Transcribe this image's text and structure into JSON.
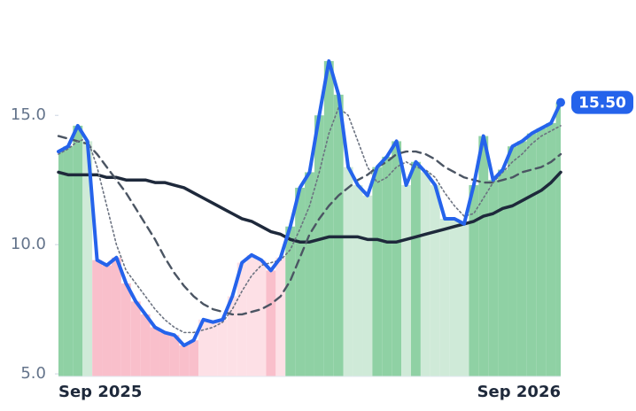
{
  "chart_data": {
    "type": "line",
    "categories": [
      "Sep 2025",
      null,
      null,
      null,
      null,
      null,
      null,
      null,
      null,
      null,
      null,
      null,
      null,
      null,
      null,
      null,
      null,
      null,
      null,
      null,
      null,
      null,
      null,
      null,
      null,
      null,
      null,
      null,
      null,
      null,
      null,
      null,
      null,
      null,
      null,
      null,
      null,
      null,
      null,
      null,
      null,
      null,
      null,
      null,
      null,
      null,
      null,
      null,
      null,
      null,
      null,
      null,
      "Sep 2026"
    ],
    "series": [
      {
        "color": "#2563eb",
        "width": 4,
        "dash": "none",
        "values": [
          13.6,
          13.8,
          14.6,
          14.0,
          9.4,
          9.2,
          9.5,
          8.5,
          7.8,
          7.3,
          6.8,
          6.6,
          6.5,
          6.1,
          6.3,
          7.1,
          7.0,
          7.1,
          8.0,
          9.3,
          9.6,
          9.4,
          9.0,
          9.5,
          10.7,
          12.2,
          12.8,
          15.0,
          17.1,
          15.8,
          13.0,
          12.3,
          11.9,
          13.0,
          13.4,
          14.0,
          12.3,
          13.2,
          12.8,
          12.3,
          11.0,
          11.0,
          10.8,
          12.3,
          14.2,
          12.5,
          12.9,
          13.8,
          14.0,
          14.3,
          14.5,
          14.7,
          15.5
        ],
        "value_labels": [
          null,
          null,
          null,
          null,
          null,
          null,
          null,
          null,
          null,
          null,
          null,
          null,
          null,
          null,
          null,
          null,
          null,
          null,
          null,
          null,
          null,
          null,
          null,
          null,
          null,
          null,
          null,
          null,
          null,
          null,
          null,
          null,
          null,
          null,
          null,
          null,
          null,
          null,
          null,
          null,
          null,
          null,
          null,
          null,
          null,
          null,
          null,
          null,
          null,
          null,
          null,
          null,
          "15.50"
        ]
      },
      {
        "color": "#6b7280",
        "width": 1.6,
        "dash": "2 3",
        "values": [
          13.5,
          13.7,
          14.0,
          14.1,
          13.0,
          11.5,
          10.0,
          9.0,
          8.5,
          8.0,
          7.5,
          7.1,
          6.8,
          6.6,
          6.6,
          6.7,
          6.8,
          7.0,
          7.5,
          8.2,
          8.8,
          9.2,
          9.3,
          9.4,
          9.8,
          10.6,
          11.5,
          12.8,
          14.3,
          15.3,
          15.0,
          14.0,
          13.0,
          12.4,
          12.6,
          13.0,
          13.2,
          13.0,
          12.9,
          12.6,
          12.0,
          11.5,
          11.1,
          11.2,
          11.8,
          12.4,
          12.8,
          13.2,
          13.5,
          13.9,
          14.2,
          14.4,
          14.6
        ]
      },
      {
        "color": "#4b5563",
        "width": 2.4,
        "dash": "9 6",
        "values": [
          14.2,
          14.1,
          14.0,
          13.9,
          13.5,
          13.0,
          12.5,
          12.0,
          11.4,
          10.8,
          10.2,
          9.5,
          8.9,
          8.4,
          8.0,
          7.7,
          7.5,
          7.4,
          7.3,
          7.3,
          7.4,
          7.5,
          7.7,
          8.0,
          8.6,
          9.5,
          10.4,
          11.0,
          11.5,
          11.9,
          12.2,
          12.5,
          12.7,
          13.0,
          13.2,
          13.5,
          13.6,
          13.6,
          13.5,
          13.3,
          13.0,
          12.8,
          12.6,
          12.5,
          12.4,
          12.4,
          12.5,
          12.6,
          12.8,
          12.9,
          13.0,
          13.2,
          13.5
        ]
      },
      {
        "color": "#1e293b",
        "width": 3.5,
        "dash": "none",
        "values": [
          12.8,
          12.7,
          12.7,
          12.7,
          12.7,
          12.6,
          12.6,
          12.5,
          12.5,
          12.5,
          12.4,
          12.4,
          12.3,
          12.2,
          12.0,
          11.8,
          11.6,
          11.4,
          11.2,
          11.0,
          10.9,
          10.7,
          10.5,
          10.4,
          10.2,
          10.1,
          10.1,
          10.2,
          10.3,
          10.3,
          10.3,
          10.3,
          10.2,
          10.2,
          10.1,
          10.1,
          10.2,
          10.3,
          10.4,
          10.5,
          10.6,
          10.7,
          10.8,
          10.9,
          11.1,
          11.2,
          11.4,
          11.5,
          11.7,
          11.9,
          12.1,
          12.4,
          12.8
        ]
      }
    ],
    "ylim": [
      4.9,
      18.4
    ],
    "yticks": [
      {
        "value": 5,
        "label": "5.0"
      },
      {
        "value": 10,
        "label": "10.0"
      },
      {
        "value": 15,
        "label": "15.0"
      }
    ]
  }
}
